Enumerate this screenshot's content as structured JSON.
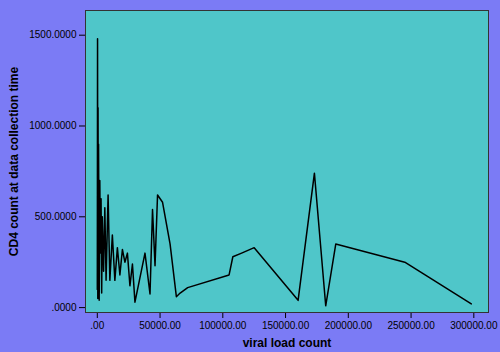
{
  "chart_data": {
    "type": "line",
    "x_label": "viral load count",
    "y_label": "CD4 count at data collection time",
    "color": "#000000",
    "x": [
      0,
      200,
      400,
      600,
      800,
      1000,
      1500,
      2000,
      2500,
      3000,
      3500,
      4000,
      5000,
      6000,
      7000,
      8600,
      10000,
      12000,
      14000,
      16000,
      18000,
      20000,
      22000,
      24000,
      26000,
      28000,
      30000,
      38000,
      42000,
      44000,
      46000,
      48000,
      52000,
      58000,
      63000,
      66000,
      72000,
      105000,
      108000,
      115000,
      125000,
      160000,
      173000,
      182000,
      190000,
      245000,
      298000
    ],
    "values": [
      100,
      1480,
      50,
      1100,
      200,
      900,
      40,
      700,
      300,
      600,
      80,
      500,
      200,
      550,
      150,
      620,
      150,
      400,
      150,
      330,
      180,
      320,
      250,
      300,
      120,
      240,
      30,
      300,
      75,
      540,
      230,
      620,
      580,
      350,
      60,
      80,
      110,
      180,
      280,
      300,
      330,
      40,
      740,
      10,
      350,
      250,
      20
    ],
    "xlim": [
      -9400,
      311700
    ],
    "ylim": [
      -27,
      1636
    ],
    "xticks": [
      {
        "value": 0,
        "label": ".00"
      },
      {
        "value": 50000,
        "label": "50000.00"
      },
      {
        "value": 100000,
        "label": "100000.00"
      },
      {
        "value": 150000,
        "label": "150000.00"
      },
      {
        "value": 200000,
        "label": "200000.00"
      },
      {
        "value": 250000,
        "label": "250000.00"
      },
      {
        "value": 300000,
        "label": "300000.00"
      }
    ],
    "yticks": [
      {
        "value": 0,
        "label": ".0000"
      },
      {
        "value": 500,
        "label": "500.0000"
      },
      {
        "value": 1000,
        "label": "1000.0000"
      },
      {
        "value": 1500,
        "label": "1500.0000"
      }
    ],
    "grid": false
  }
}
